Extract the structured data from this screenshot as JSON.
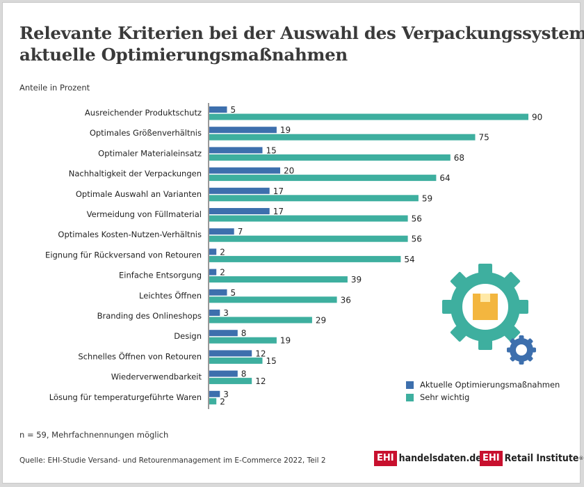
{
  "title_line1": "Relevante Kriterien bei der Auswahl des Verpackungssystems,",
  "title_line2": "aktuelle Optimierungsmaßnahmen",
  "subtitle": "Anteile in Prozent",
  "footnote": "n = 59, Mehrfachnennungen möglich",
  "source": "Quelle: EHI-Studie Versand- und Retourenmanagement im E-Commerce 2022, Teil 2",
  "logos": {
    "logo1_box": "EHI",
    "logo1_text": "handelsdaten.de",
    "logo2_box": "EHI",
    "logo2_text": "Retail Institute",
    "logo2_reg": "®"
  },
  "colors": {
    "current": "#3d6fad",
    "important": "#3eaf9f",
    "gear_big": "#3eaf9f",
    "gear_small": "#3d6fad",
    "box": "#f3b63f"
  },
  "icons": [
    "gear-icon",
    "package-icon"
  ],
  "chart_data": {
    "type": "bar",
    "orientation": "horizontal",
    "unit": "Prozent",
    "categories": [
      "Ausreichender Produktschutz",
      "Optimales Größenverhältnis",
      "Optimaler Materialeinsatz",
      "Nachhaltigkeit der Verpackungen",
      "Optimale Auswahl an Varianten",
      "Vermeidung von Füllmaterial",
      "Optimales Kosten-Nutzen-Verhältnis",
      "Eignung für Rückversand von Retouren",
      "Einfache Entsorgung",
      "Leichtes Öffnen",
      "Branding des Onlineshops",
      "Design",
      "Schnelles Öffnen von Retouren",
      "Wiederverwendbarkeit",
      "Lösung für temperaturgeführte Waren"
    ],
    "series": [
      {
        "name": "Aktuelle Optimierungsmaßnahmen",
        "values": [
          5,
          19,
          15,
          20,
          17,
          17,
          7,
          2,
          2,
          5,
          3,
          8,
          12,
          8,
          3
        ]
      },
      {
        "name": "Sehr wichtig",
        "values": [
          90,
          75,
          68,
          64,
          59,
          56,
          56,
          54,
          39,
          36,
          29,
          19,
          15,
          12,
          2
        ]
      }
    ],
    "xlim": [
      0,
      100
    ],
    "grid": false,
    "legend": "bottom-right"
  }
}
